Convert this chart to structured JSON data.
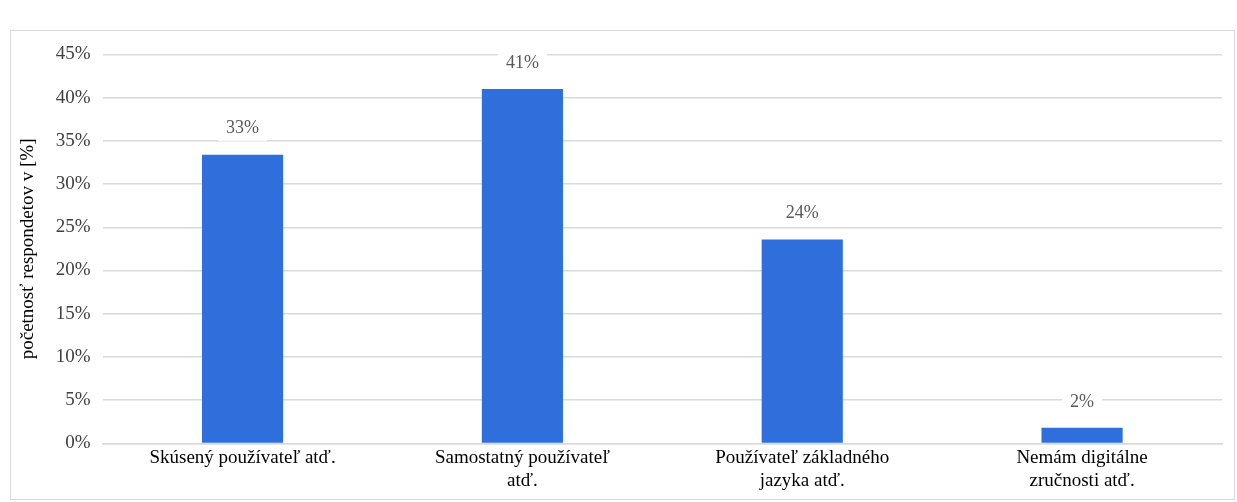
{
  "chart_data": {
    "type": "bar",
    "ylabel": "početnosť respondetov v [%]",
    "categories": [
      "Skúsený používateľ atď.",
      "Samostatný používateľ atď.",
      "Používateľ základného jazyka atď.",
      "Nemám digitálne zručnosti atď."
    ],
    "values": [
      33.4,
      41,
      23.6,
      1.8
    ],
    "value_labels": [
      "33%",
      "41%",
      "24%",
      "2%"
    ],
    "color": "#2f6fdc",
    "ylim": [
      0,
      45
    ],
    "yticks": [
      {
        "value": 0,
        "label": "0%"
      },
      {
        "value": 5,
        "label": "5%"
      },
      {
        "value": 10,
        "label": "10%"
      },
      {
        "value": 15,
        "label": "15%"
      },
      {
        "value": 20,
        "label": "20%"
      },
      {
        "value": 25,
        "label": "25%"
      },
      {
        "value": 30,
        "label": "30%"
      },
      {
        "value": 35,
        "label": "35%"
      },
      {
        "value": 40,
        "label": "40%"
      },
      {
        "value": 45,
        "label": "45%"
      }
    ],
    "grid": "y",
    "legend": false
  }
}
